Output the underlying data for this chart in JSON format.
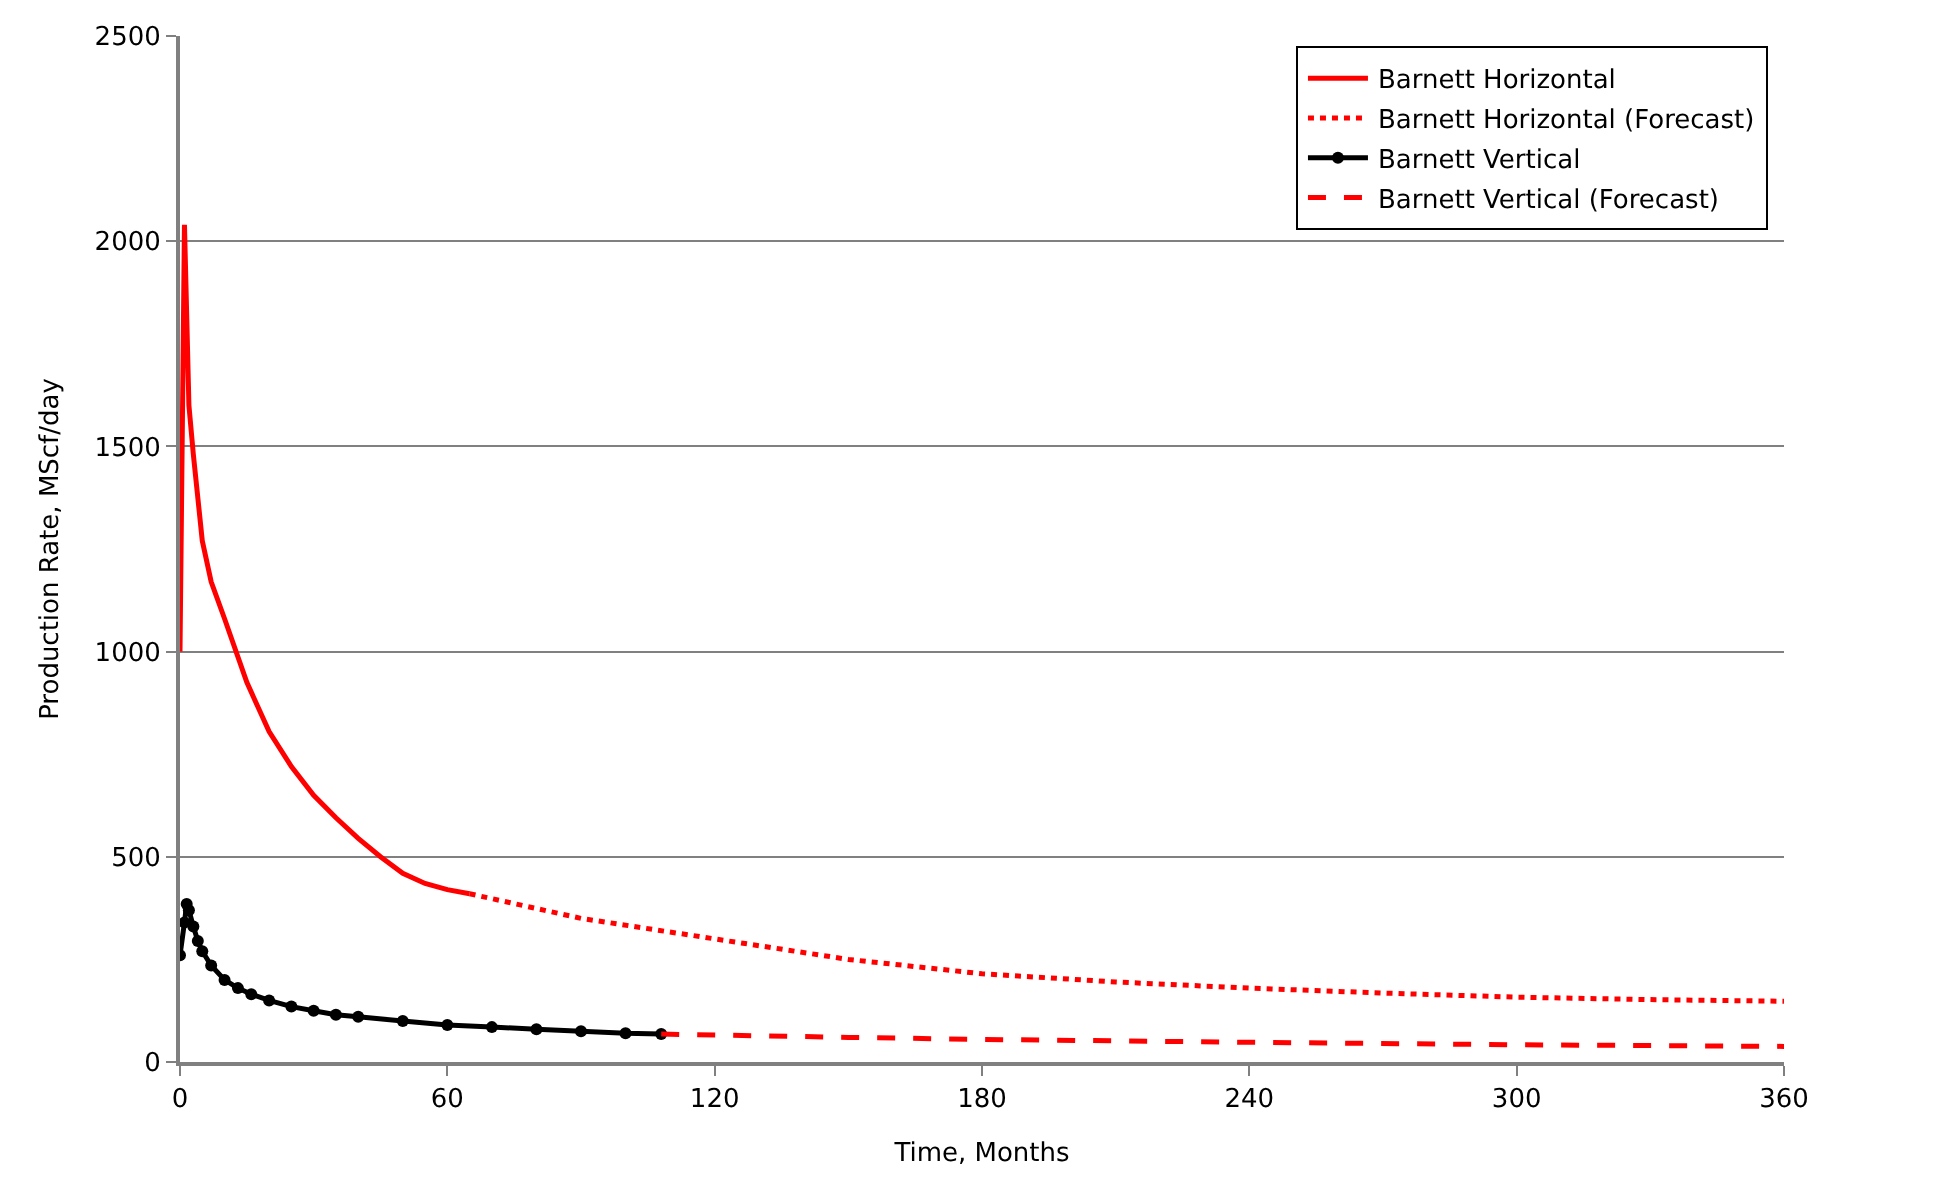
{
  "chart_data": {
    "type": "line",
    "xlabel": "Time, Months",
    "ylabel": "Production Rate, MScf/day",
    "xlim": [
      0,
      360
    ],
    "xticks": [
      0,
      60,
      120,
      180,
      240,
      300,
      360
    ],
    "ylim": [
      0,
      2500
    ],
    "yticks": [
      0,
      500,
      1000,
      1500,
      2000,
      2500
    ],
    "grid": "y",
    "legend": "top right",
    "series": [
      {
        "name": "Barnett Horizontal",
        "color": "#ff0000",
        "line_style": "solid",
        "marker": "none",
        "x": [
          0,
          1,
          2,
          3,
          5,
          7,
          10,
          15,
          20,
          25,
          30,
          35,
          40,
          45,
          50,
          55,
          60,
          65
        ],
        "values": [
          1000,
          2040,
          1600,
          1480,
          1270,
          1170,
          1080,
          925,
          805,
          720,
          650,
          595,
          545,
          500,
          460,
          435,
          420,
          410
        ]
      },
      {
        "name": "Barnett Horizontal (Forecast)",
        "color": "#ff0000",
        "line_style": "dotted",
        "marker": "none",
        "x": [
          65,
          90,
          120,
          150,
          180,
          210,
          240,
          270,
          300,
          330,
          360
        ],
        "values": [
          410,
          350,
          300,
          250,
          215,
          195,
          180,
          168,
          158,
          152,
          148
        ]
      },
      {
        "name": "Barnett Vertical",
        "color": "#000000",
        "line_style": "solid",
        "marker": "circle",
        "x": [
          0,
          1,
          1.5,
          2,
          3,
          4,
          5,
          7,
          10,
          13,
          16,
          20,
          25,
          30,
          35,
          40,
          50,
          60,
          70,
          80,
          90,
          100,
          108
        ],
        "values": [
          260,
          340,
          385,
          370,
          330,
          295,
          270,
          235,
          200,
          180,
          165,
          150,
          135,
          125,
          115,
          110,
          100,
          90,
          85,
          80,
          75,
          70,
          68
        ]
      },
      {
        "name": "Barnett Vertical (Forecast)",
        "color": "#ff0000",
        "line_style": "dashed",
        "marker": "none",
        "x": [
          108,
          150,
          180,
          240,
          300,
          360
        ],
        "values": [
          68,
          60,
          55,
          48,
          42,
          38
        ]
      }
    ]
  }
}
